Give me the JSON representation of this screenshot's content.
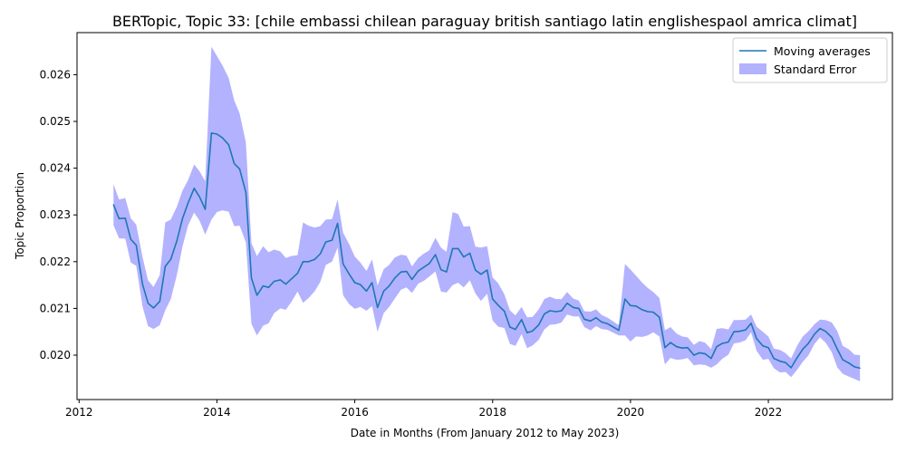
{
  "chart_data": {
    "type": "line",
    "title": "BERTopic, Topic 33: [chile embassi chilean paraguay british santiago latin englishespaol amrica climat]",
    "xlabel": "Date in Months (From January 2012 to May 2023)",
    "ylabel": "Topic Proportion",
    "xlim": [
      2011.97,
      2023.8
    ],
    "ylim": [
      0.01905,
      0.0269
    ],
    "xticks": [
      2012,
      2014,
      2016,
      2018,
      2020,
      2022
    ],
    "xtick_labels": [
      "2012",
      "2014",
      "2016",
      "2018",
      "2020",
      "2022"
    ],
    "yticks": [
      0.02,
      0.021,
      0.022,
      0.023,
      0.024,
      0.025,
      0.026
    ],
    "ytick_labels": [
      "0.020",
      "0.021",
      "0.022",
      "0.023",
      "0.024",
      "0.025",
      "0.026"
    ],
    "grid": false,
    "legend_position": "upper right",
    "series": [
      {
        "name": "Moving averages",
        "color": "#1f77b4",
        "x": [
          2012.5,
          2012.58,
          2012.67,
          2012.75,
          2012.83,
          2012.92,
          2013.0,
          2013.08,
          2013.17,
          2013.25,
          2013.33,
          2013.42,
          2013.5,
          2013.58,
          2013.67,
          2013.75,
          2013.83,
          2013.92,
          2014.0,
          2014.08,
          2014.17,
          2014.25,
          2014.33,
          2014.42,
          2014.5,
          2014.58,
          2014.67,
          2014.75,
          2014.83,
          2014.92,
          2015.0,
          2015.08,
          2015.17,
          2015.25,
          2015.33,
          2015.42,
          2015.5,
          2015.58,
          2015.67,
          2015.75,
          2015.83,
          2015.92,
          2016.0,
          2016.08,
          2016.17,
          2016.25,
          2016.33,
          2016.42,
          2016.5,
          2016.58,
          2016.67,
          2016.75,
          2016.83,
          2016.92,
          2017.0,
          2017.08,
          2017.17,
          2017.25,
          2017.33,
          2017.42,
          2017.5,
          2017.58,
          2017.67,
          2017.75,
          2017.83,
          2017.92,
          2018.0,
          2018.08,
          2018.17,
          2018.25,
          2018.33,
          2018.42,
          2018.5,
          2018.58,
          2018.67,
          2018.75,
          2018.83,
          2018.92,
          2019.0,
          2019.08,
          2019.17,
          2019.25,
          2019.33,
          2019.42,
          2019.5,
          2019.58,
          2019.67,
          2019.75,
          2019.83,
          2019.92,
          2020.0,
          2020.08,
          2020.17,
          2020.25,
          2020.33,
          2020.42,
          2020.5,
          2020.58,
          2020.67,
          2020.75,
          2020.83,
          2020.92,
          2021.0,
          2021.08,
          2021.17,
          2021.25,
          2021.33,
          2021.42,
          2021.5,
          2021.58,
          2021.67,
          2021.75,
          2021.83,
          2021.92,
          2022.0,
          2022.08,
          2022.17,
          2022.25,
          2022.33,
          2022.42,
          2022.5,
          2022.58,
          2022.67,
          2022.75,
          2022.83,
          2022.92,
          2023.0,
          2023.08,
          2023.17,
          2023.25,
          2023.33
        ],
        "values": [
          0.02322,
          0.02292,
          0.02293,
          0.02248,
          0.02235,
          0.02152,
          0.02111,
          0.02101,
          0.02115,
          0.0219,
          0.02205,
          0.02245,
          0.02292,
          0.02325,
          0.02357,
          0.02338,
          0.02312,
          0.02475,
          0.02473,
          0.02465,
          0.0245,
          0.0241,
          0.02398,
          0.02348,
          0.02165,
          0.02128,
          0.02148,
          0.02145,
          0.02158,
          0.02161,
          0.02152,
          0.02163,
          0.02175,
          0.022,
          0.022,
          0.02205,
          0.02217,
          0.02242,
          0.02246,
          0.02282,
          0.02195,
          0.02173,
          0.02155,
          0.02151,
          0.02137,
          0.02155,
          0.02102,
          0.02137,
          0.02148,
          0.02165,
          0.02178,
          0.02179,
          0.02162,
          0.0218,
          0.02188,
          0.02196,
          0.02215,
          0.02183,
          0.02178,
          0.02228,
          0.02228,
          0.0221,
          0.02218,
          0.02182,
          0.02173,
          0.02182,
          0.0212,
          0.02107,
          0.02094,
          0.0206,
          0.02055,
          0.02076,
          0.02048,
          0.02052,
          0.02065,
          0.02088,
          0.02095,
          0.02093,
          0.02095,
          0.02111,
          0.02102,
          0.021,
          0.02077,
          0.02073,
          0.0208,
          0.02071,
          0.02067,
          0.0206,
          0.02053,
          0.0212,
          0.02106,
          0.02105,
          0.02097,
          0.02093,
          0.02092,
          0.02081,
          0.02016,
          0.02027,
          0.02018,
          0.02015,
          0.02016,
          0.02,
          0.02005,
          0.02003,
          0.01993,
          0.02018,
          0.02025,
          0.02028,
          0.0205,
          0.02051,
          0.02054,
          0.02068,
          0.02035,
          0.0202,
          0.02016,
          0.01993,
          0.01987,
          0.01984,
          0.01973,
          0.01995,
          0.02013,
          0.02025,
          0.02045,
          0.02057,
          0.02051,
          0.02038,
          0.02013,
          0.0199,
          0.01983,
          0.01975,
          0.01972
        ]
      },
      {
        "name": "Standard Error",
        "color": "#0000ff",
        "opacity": 0.3,
        "x": [
          2012.5,
          2012.58,
          2012.67,
          2012.75,
          2012.83,
          2012.92,
          2013.0,
          2013.08,
          2013.17,
          2013.25,
          2013.33,
          2013.42,
          2013.5,
          2013.58,
          2013.67,
          2013.75,
          2013.83,
          2013.92,
          2014.0,
          2014.08,
          2014.17,
          2014.25,
          2014.33,
          2014.42,
          2014.5,
          2014.58,
          2014.67,
          2014.75,
          2014.83,
          2014.92,
          2015.0,
          2015.08,
          2015.17,
          2015.25,
          2015.33,
          2015.42,
          2015.5,
          2015.58,
          2015.67,
          2015.75,
          2015.83,
          2015.92,
          2016.0,
          2016.08,
          2016.17,
          2016.25,
          2016.33,
          2016.42,
          2016.5,
          2016.58,
          2016.67,
          2016.75,
          2016.83,
          2016.92,
          2017.0,
          2017.08,
          2017.17,
          2017.25,
          2017.33,
          2017.42,
          2017.5,
          2017.58,
          2017.67,
          2017.75,
          2017.83,
          2017.92,
          2018.0,
          2018.08,
          2018.17,
          2018.25,
          2018.33,
          2018.42,
          2018.5,
          2018.58,
          2018.67,
          2018.75,
          2018.83,
          2018.92,
          2019.0,
          2019.08,
          2019.17,
          2019.25,
          2019.33,
          2019.42,
          2019.5,
          2019.58,
          2019.67,
          2019.75,
          2019.83,
          2019.92,
          2020.0,
          2020.08,
          2020.17,
          2020.25,
          2020.33,
          2020.42,
          2020.5,
          2020.58,
          2020.67,
          2020.75,
          2020.83,
          2020.92,
          2021.0,
          2021.08,
          2021.17,
          2021.25,
          2021.33,
          2021.42,
          2021.5,
          2021.58,
          2021.67,
          2021.75,
          2021.83,
          2021.92,
          2022.0,
          2022.08,
          2022.17,
          2022.25,
          2022.33,
          2022.42,
          2022.5,
          2022.58,
          2022.67,
          2022.75,
          2022.83,
          2022.92,
          2023.0,
          2023.08,
          2023.17,
          2023.25,
          2023.33
        ],
        "upper": [
          0.02366,
          0.02333,
          0.02336,
          0.02293,
          0.02279,
          0.0221,
          0.0216,
          0.02146,
          0.02171,
          0.02284,
          0.0229,
          0.02318,
          0.02352,
          0.02374,
          0.02408,
          0.02393,
          0.02372,
          0.0266,
          0.0264,
          0.0262,
          0.02593,
          0.02545,
          0.02517,
          0.02455,
          0.0224,
          0.02212,
          0.02233,
          0.0222,
          0.02226,
          0.02222,
          0.02208,
          0.02212,
          0.02214,
          0.02284,
          0.02277,
          0.02273,
          0.02276,
          0.0229,
          0.02291,
          0.02333,
          0.02262,
          0.02237,
          0.02211,
          0.02198,
          0.0218,
          0.02205,
          0.02149,
          0.02184,
          0.02193,
          0.02209,
          0.02215,
          0.02213,
          0.0219,
          0.02208,
          0.02217,
          0.02224,
          0.02251,
          0.0223,
          0.02221,
          0.02306,
          0.02302,
          0.02275,
          0.02276,
          0.02232,
          0.0223,
          0.02233,
          0.02166,
          0.02154,
          0.0213,
          0.02096,
          0.02085,
          0.02103,
          0.02081,
          0.02082,
          0.02098,
          0.0212,
          0.02125,
          0.0212,
          0.0212,
          0.02135,
          0.02121,
          0.02117,
          0.02094,
          0.02093,
          0.02098,
          0.02086,
          0.0208,
          0.02072,
          0.02064,
          0.02195,
          0.02183,
          0.0217,
          0.02155,
          0.02144,
          0.02135,
          0.02122,
          0.02053,
          0.0206,
          0.02046,
          0.0204,
          0.02038,
          0.02022,
          0.0203,
          0.02027,
          0.02013,
          0.02056,
          0.02058,
          0.02055,
          0.02075,
          0.02075,
          0.02076,
          0.02087,
          0.02061,
          0.0205,
          0.0204,
          0.02014,
          0.02011,
          0.02004,
          0.01993,
          0.02021,
          0.0204,
          0.02051,
          0.02066,
          0.02076,
          0.02075,
          0.0207,
          0.02052,
          0.0202,
          0.02012,
          0.02001,
          0.02
        ],
        "lower": [
          0.02278,
          0.0225,
          0.02249,
          0.02198,
          0.02191,
          0.02104,
          0.02062,
          0.02056,
          0.02064,
          0.02096,
          0.0212,
          0.02172,
          0.02232,
          0.02277,
          0.02305,
          0.02287,
          0.02258,
          0.0229,
          0.02306,
          0.0231,
          0.02307,
          0.02276,
          0.02277,
          0.02241,
          0.02067,
          0.02042,
          0.02063,
          0.02068,
          0.0209,
          0.021,
          0.02097,
          0.02114,
          0.02136,
          0.02112,
          0.02122,
          0.02137,
          0.02157,
          0.02193,
          0.022,
          0.0223,
          0.02128,
          0.02109,
          0.02099,
          0.02103,
          0.02095,
          0.02105,
          0.0205,
          0.0209,
          0.02103,
          0.02121,
          0.0214,
          0.02145,
          0.02133,
          0.02153,
          0.02159,
          0.02168,
          0.02179,
          0.02136,
          0.02134,
          0.0215,
          0.02155,
          0.02145,
          0.0216,
          0.02132,
          0.02116,
          0.02131,
          0.02074,
          0.02061,
          0.02058,
          0.02024,
          0.0202,
          0.02045,
          0.02015,
          0.02021,
          0.02033,
          0.02055,
          0.02065,
          0.02066,
          0.0207,
          0.02087,
          0.02083,
          0.02083,
          0.0206,
          0.02053,
          0.02062,
          0.02056,
          0.02054,
          0.02048,
          0.02042,
          0.02042,
          0.02029,
          0.0204,
          0.02039,
          0.02042,
          0.02049,
          0.0204,
          0.0198,
          0.01994,
          0.0199,
          0.01991,
          0.01994,
          0.01978,
          0.0198,
          0.01979,
          0.01973,
          0.0198,
          0.01992,
          0.02001,
          0.02025,
          0.02027,
          0.02032,
          0.02049,
          0.02009,
          0.0199,
          0.01992,
          0.01972,
          0.01963,
          0.01964,
          0.01953,
          0.01969,
          0.01986,
          0.01999,
          0.02024,
          0.02038,
          0.02027,
          0.02006,
          0.01974,
          0.0196,
          0.01954,
          0.01949,
          0.01944
        ]
      }
    ]
  }
}
